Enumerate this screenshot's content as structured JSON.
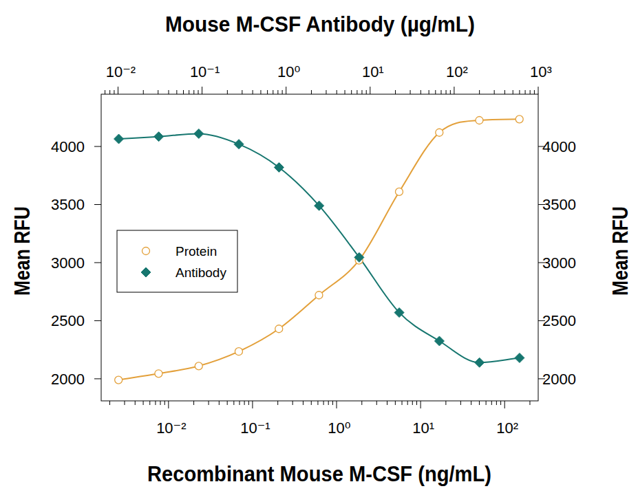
{
  "chart_data": {
    "type": "scatter",
    "x_label": "Recombinant Mouse M-CSF (ng/mL)",
    "x2_label": "Mouse M-CSF Antibody (µg/mL)",
    "y_label": "Mean RFU",
    "y2_label": "Mean RFU",
    "log": "x",
    "legend": "left",
    "xlim": [
      0.00158,
      251
    ],
    "xticks": [
      {
        "value": 0.01,
        "label": "10⁻²"
      },
      {
        "value": 0.1,
        "label": "10⁻¹"
      },
      {
        "value": 1,
        "label": "10⁰"
      },
      {
        "value": 10,
        "label": "10¹"
      },
      {
        "value": 100,
        "label": "10²"
      }
    ],
    "x2lim": [
      0.0063,
      1000
    ],
    "x2ticks": [
      {
        "value": 0.01,
        "label": "10⁻²"
      },
      {
        "value": 0.1,
        "label": "10⁻¹"
      },
      {
        "value": 1,
        "label": "10⁰"
      },
      {
        "value": 10,
        "label": "10¹"
      },
      {
        "value": 100,
        "label": "10²"
      },
      {
        "value": 1000,
        "label": "10³"
      }
    ],
    "ylim": [
      1810,
      4450
    ],
    "yticks": [
      2000,
      2500,
      3000,
      3500,
      4000
    ],
    "y2lim": [
      1810,
      4450
    ],
    "y2ticks": [
      2000,
      2500,
      3000,
      3500,
      4000
    ],
    "series": [
      {
        "name": "Protein",
        "color": "#e3a03a",
        "marker": "open-circle",
        "line_style": "solid",
        "x": [
          0.00254,
          0.00762,
          0.0229,
          0.0686,
          0.206,
          0.617,
          1.85,
          5.56,
          16.7,
          50,
          150
        ],
        "values": [
          1990,
          2045,
          2110,
          2235,
          2430,
          2720,
          3020,
          3610,
          4120,
          4225,
          4235
        ]
      },
      {
        "name": "Antibody",
        "color": "#16766f",
        "marker": "diamond",
        "line_style": "solid",
        "axis": "x2",
        "x": [
          0.0102,
          0.0305,
          0.0914,
          0.274,
          0.823,
          2.47,
          7.41,
          22.2,
          66.7,
          200,
          600
        ],
        "values": [
          4065,
          4085,
          4110,
          4020,
          3820,
          3490,
          3045,
          2570,
          2325,
          2140,
          2180
        ]
      }
    ]
  }
}
